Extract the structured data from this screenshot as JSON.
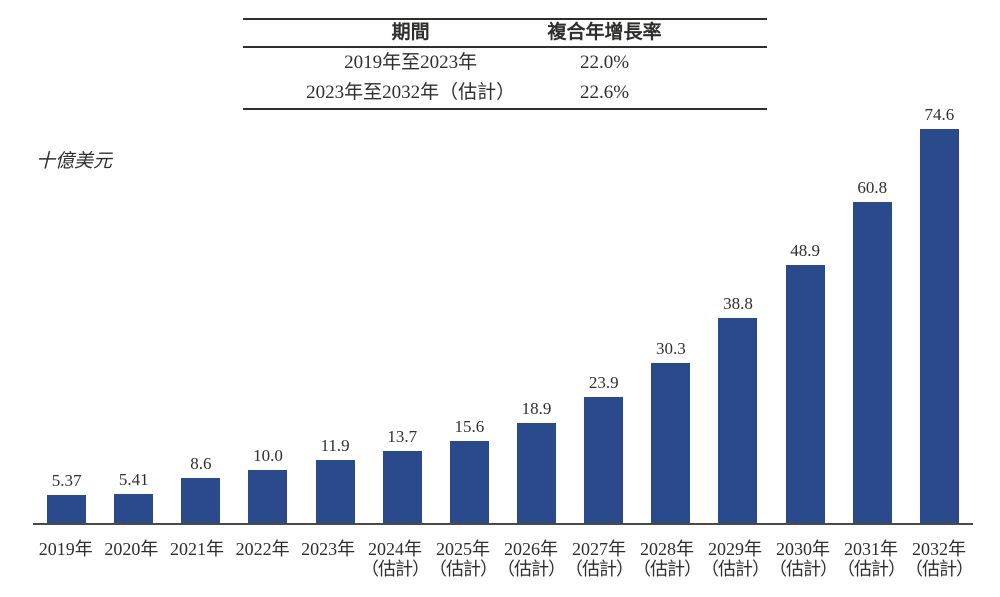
{
  "cagr_table": {
    "headers": [
      "期間",
      "複合年增長率"
    ],
    "rows": [
      [
        "2019年至2023年",
        "22.0%"
      ],
      [
        "2023年至2032年（估計）",
        "22.6%"
      ]
    ]
  },
  "chart_data": {
    "type": "bar",
    "title": "",
    "unit_label": "十億美元",
    "bar_color": "#2b4a8c",
    "axis_color": "#4a4a48",
    "categories": [
      {
        "label": "2019年",
        "sublabel": ""
      },
      {
        "label": "2020年",
        "sublabel": ""
      },
      {
        "label": "2021年",
        "sublabel": ""
      },
      {
        "label": "2022年",
        "sublabel": ""
      },
      {
        "label": "2023年",
        "sublabel": ""
      },
      {
        "label": "2024年",
        "sublabel": "（估計）"
      },
      {
        "label": "2025年",
        "sublabel": "（估計）"
      },
      {
        "label": "2026年",
        "sublabel": "（估計）"
      },
      {
        "label": "2027年",
        "sublabel": "（估計）"
      },
      {
        "label": "2028年",
        "sublabel": "（估計）"
      },
      {
        "label": "2029年",
        "sublabel": "（估計）"
      },
      {
        "label": "2030年",
        "sublabel": "（估計）"
      },
      {
        "label": "2031年",
        "sublabel": "（估計）"
      },
      {
        "label": "2032年",
        "sublabel": "（估計）"
      }
    ],
    "values": [
      5.37,
      5.41,
      8.6,
      10.0,
      11.9,
      13.7,
      15.6,
      18.9,
      23.9,
      30.3,
      38.8,
      48.9,
      60.8,
      74.6
    ],
    "value_labels": [
      "5.37",
      "5.41",
      "8.6",
      "10.0",
      "11.9",
      "13.7",
      "15.6",
      "18.9",
      "23.9",
      "30.3",
      "38.8",
      "48.9",
      "60.8",
      "74.6"
    ],
    "ylim": [
      0,
      81
    ],
    "grid": false,
    "legend": "none"
  }
}
